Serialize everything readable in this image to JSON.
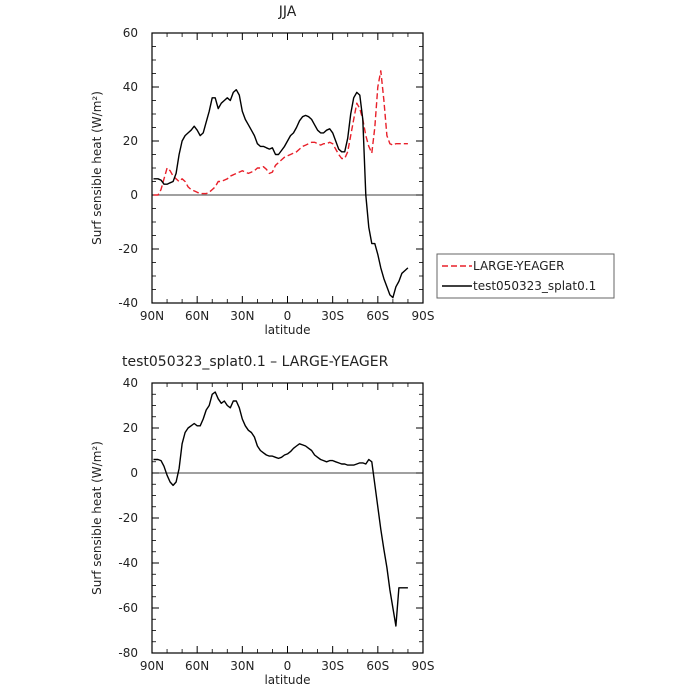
{
  "chart_data": [
    {
      "type": "line",
      "title": "JJA",
      "xlabel": "latitude",
      "ylabel": "Surf sensible heat (W/m²)",
      "xlim": [
        90,
        -90
      ],
      "ylim": [
        -40,
        60
      ],
      "xticks": [
        90,
        60,
        30,
        0,
        -30,
        -60,
        -90
      ],
      "xtick_labels": [
        "90N",
        "60N",
        "30N",
        "0",
        "30S",
        "60S",
        "90S"
      ],
      "yticks": [
        -40,
        -20,
        0,
        20,
        40,
        60
      ],
      "ytick_labels": [
        "-40",
        "-20",
        "0",
        "20",
        "40",
        "60"
      ],
      "legend": {
        "placement": "right"
      },
      "series": [
        {
          "name": "LARGE-YEAGER",
          "color": "#e8202a",
          "dash": "dashed",
          "x": [
            89,
            86,
            84,
            82,
            80,
            78,
            76,
            74,
            72,
            70,
            68,
            66,
            64,
            62,
            60,
            58,
            56,
            54,
            52,
            50,
            48,
            46,
            44,
            42,
            40,
            38,
            36,
            34,
            32,
            30,
            28,
            26,
            24,
            22,
            20,
            18,
            16,
            14,
            12,
            10,
            8,
            6,
            4,
            2,
            0,
            -2,
            -4,
            -6,
            -8,
            -10,
            -12,
            -14,
            -16,
            -18,
            -20,
            -22,
            -24,
            -26,
            -28,
            -30,
            -32,
            -34,
            -36,
            -38,
            -40,
            -42,
            -44,
            -46,
            -48,
            -50,
            -52,
            -54,
            -56,
            -58,
            -60,
            -62,
            -64,
            -66,
            -68,
            -70,
            -72,
            -74,
            -76,
            -78,
            -80
          ],
          "y": [
            0,
            0,
            2,
            6,
            10,
            9,
            7,
            6,
            5,
            6,
            5,
            3,
            2,
            1.5,
            1,
            0.5,
            0.5,
            0.5,
            1,
            2,
            3,
            5,
            5,
            5.5,
            6,
            7,
            7.5,
            8,
            8.5,
            9,
            8.5,
            8,
            8.5,
            9,
            10,
            10,
            10.5,
            9.5,
            8,
            8.5,
            11,
            12,
            13,
            14,
            14.5,
            15,
            15.5,
            16,
            17,
            18,
            18.5,
            19,
            19.5,
            19.5,
            19,
            18.5,
            19,
            19,
            19.5,
            19,
            17,
            15,
            13.5,
            13.5,
            16,
            22,
            28,
            34,
            32,
            28,
            22,
            18,
            15.5,
            25,
            40,
            46,
            35,
            22,
            19,
            18.5,
            19,
            19,
            19,
            19,
            19
          ]
        },
        {
          "name": "test050323_splat0.1",
          "color": "#000000",
          "dash": "solid",
          "x": [
            89,
            86,
            84,
            82,
            80,
            78,
            76,
            74,
            72,
            70,
            68,
            66,
            64,
            62,
            60,
            58,
            56,
            54,
            52,
            50,
            48,
            46,
            44,
            42,
            40,
            38,
            36,
            34,
            32,
            30,
            28,
            26,
            24,
            22,
            20,
            18,
            16,
            14,
            12,
            10,
            8,
            6,
            4,
            2,
            0,
            -2,
            -4,
            -6,
            -8,
            -10,
            -12,
            -14,
            -16,
            -18,
            -20,
            -22,
            -24,
            -26,
            -28,
            -30,
            -32,
            -34,
            -36,
            -38,
            -40,
            -42,
            -44,
            -46,
            -48,
            -50,
            -52,
            -54,
            -56,
            -58,
            -60,
            -62,
            -64,
            -66,
            -68,
            -70,
            -72,
            -74,
            -76,
            -78,
            -80
          ],
          "y": [
            6,
            6,
            5.5,
            4,
            4,
            4.5,
            5,
            8,
            15,
            20,
            22,
            23,
            24,
            25.5,
            24,
            22,
            23,
            27,
            31,
            36,
            36,
            32,
            34,
            35,
            36,
            35,
            38,
            39,
            37,
            31,
            28,
            26,
            24,
            22,
            19,
            18,
            18,
            17.5,
            17,
            17.5,
            15,
            15,
            16.5,
            18,
            20,
            22,
            23,
            25,
            27.5,
            29,
            29.5,
            29,
            28,
            26,
            24,
            23,
            23,
            24,
            24.5,
            23,
            20,
            17,
            16,
            16,
            21,
            30,
            36,
            38,
            37,
            28,
            0,
            -12,
            -18,
            -18,
            -22,
            -27,
            -31,
            -34,
            -37,
            -38,
            -34,
            -32,
            -29,
            -28,
            -27
          ]
        }
      ]
    },
    {
      "type": "line",
      "title": "test050323_splat0.1 – LARGE-YEAGER",
      "xlabel": "latitude",
      "ylabel": "Surf sensible heat (W/m²)",
      "xlim": [
        90,
        -90
      ],
      "ylim": [
        -80,
        40
      ],
      "xticks": [
        90,
        60,
        30,
        0,
        -30,
        -60,
        -90
      ],
      "xtick_labels": [
        "90N",
        "60N",
        "30N",
        "0",
        "30S",
        "60S",
        "90S"
      ],
      "yticks": [
        -80,
        -60,
        -40,
        -20,
        0,
        20,
        40
      ],
      "ytick_labels": [
        "-80",
        "-60",
        "-40",
        "-20",
        "0",
        "20",
        "40"
      ],
      "series": [
        {
          "color": "#000000",
          "dash": "solid",
          "x": [
            89,
            86,
            84,
            82,
            80,
            78,
            76,
            74,
            72,
            70,
            68,
            66,
            64,
            62,
            60,
            58,
            56,
            54,
            52,
            50,
            48,
            46,
            44,
            42,
            40,
            38,
            36,
            34,
            32,
            30,
            28,
            26,
            24,
            22,
            20,
            18,
            16,
            14,
            12,
            10,
            8,
            6,
            4,
            2,
            0,
            -2,
            -4,
            -6,
            -8,
            -10,
            -12,
            -14,
            -16,
            -18,
            -20,
            -22,
            -24,
            -26,
            -28,
            -30,
            -32,
            -34,
            -36,
            -38,
            -40,
            -42,
            -44,
            -46,
            -48,
            -50,
            -52,
            -54,
            -56,
            -58,
            -60,
            -62,
            -64,
            -66,
            -68,
            -70,
            -72,
            -74,
            -76,
            -78,
            -80
          ],
          "y": [
            6,
            6,
            5.5,
            3,
            -1,
            -4,
            -5.5,
            -4,
            2,
            13,
            18,
            20,
            21,
            22,
            21,
            21,
            24,
            28,
            30,
            35,
            36,
            33,
            31,
            32,
            30,
            29,
            32,
            32,
            29,
            24,
            21,
            19,
            18,
            16,
            12,
            10,
            9,
            8,
            7.5,
            7.5,
            7,
            6.5,
            7,
            8,
            8.5,
            9.5,
            11,
            12,
            13,
            12.5,
            12,
            11,
            10,
            8,
            7,
            6,
            5.5,
            5,
            5.5,
            5.5,
            5,
            4.5,
            4,
            4,
            3.5,
            3.5,
            3.5,
            4,
            4.5,
            4.5,
            4,
            6,
            5,
            -5,
            -15,
            -25,
            -34,
            -42,
            -52,
            -60,
            -68,
            -51,
            -51,
            -51,
            -51
          ]
        }
      ]
    }
  ]
}
